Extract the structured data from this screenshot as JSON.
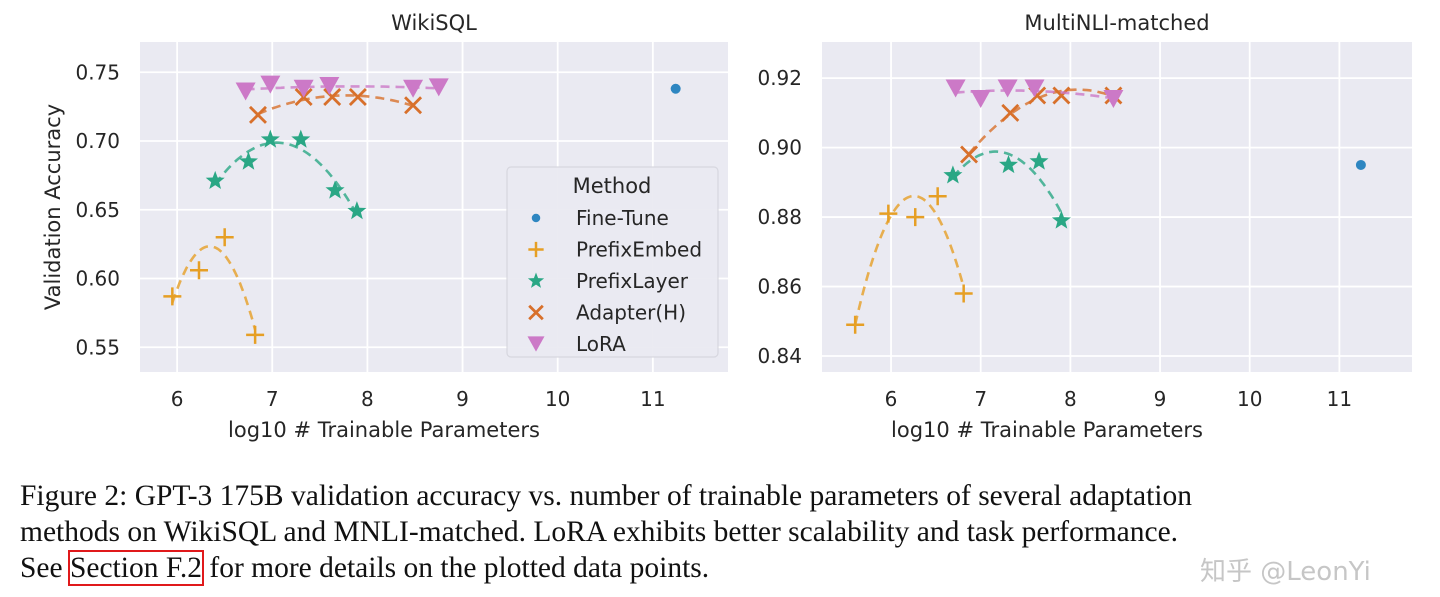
{
  "colors": {
    "background_plot": "#eaeaf2",
    "grid": "#ffffff",
    "Fine-Tune": "#2e86c1",
    "PrefixEmbed": "#e69f25",
    "PrefixLayer": "#2aa785",
    "Adapter(H)": "#d8702b",
    "LoRA": "#cc79c7"
  },
  "chart_data": [
    {
      "type": "scatter",
      "title": "WikiSQL",
      "xlabel": "log10 # Trainable Parameters",
      "ylabel": "Validation Accuracy",
      "xlim": [
        5.61,
        11.79
      ],
      "ylim": [
        0.532,
        0.772
      ],
      "xticks": [
        6,
        7,
        8,
        9,
        10,
        11
      ],
      "yticks": [
        0.55,
        0.6,
        0.65,
        0.7,
        0.75
      ],
      "ytick_labels": [
        "0.55",
        "0.60",
        "0.65",
        "0.70",
        "0.75"
      ],
      "grid": true,
      "legend": {
        "title": "Method",
        "placement": "center-right",
        "entries": [
          "Fine-Tune",
          "PrefixEmbed",
          "PrefixLayer",
          "Adapter(H)",
          "LoRA"
        ]
      },
      "series": [
        {
          "name": "Fine-Tune",
          "marker": "circle",
          "fit": false,
          "x": [
            11.24
          ],
          "y": [
            0.738
          ]
        },
        {
          "name": "PrefixEmbed",
          "marker": "plus",
          "fit": true,
          "x": [
            5.95,
            6.23,
            6.5,
            6.82
          ],
          "y": [
            0.587,
            0.606,
            0.63,
            0.559
          ]
        },
        {
          "name": "PrefixLayer",
          "marker": "star",
          "fit": true,
          "x": [
            6.4,
            6.75,
            6.98,
            7.3,
            7.66,
            7.89
          ],
          "y": [
            0.671,
            0.685,
            0.701,
            0.701,
            0.664,
            0.649
          ]
        },
        {
          "name": "Adapter(H)",
          "marker": "x",
          "fit": true,
          "x": [
            6.85,
            7.33,
            7.63,
            7.9,
            8.48
          ],
          "y": [
            0.719,
            0.732,
            0.732,
            0.732,
            0.726
          ]
        },
        {
          "name": "LoRA",
          "marker": "triangle-down",
          "fit": true,
          "x": [
            6.72,
            6.98,
            7.33,
            7.6,
            8.48,
            8.75
          ],
          "y": [
            0.736,
            0.741,
            0.738,
            0.74,
            0.738,
            0.739
          ]
        }
      ]
    },
    {
      "type": "scatter",
      "title": "MultiNLI-matched",
      "xlabel": "log10 # Trainable Parameters",
      "ylabel": "",
      "xlim": [
        5.23,
        11.81
      ],
      "ylim": [
        0.8354,
        0.9304
      ],
      "xticks": [
        6,
        7,
        8,
        9,
        10,
        11
      ],
      "yticks": [
        0.84,
        0.86,
        0.88,
        0.9,
        0.92
      ],
      "ytick_labels": [
        "0.84",
        "0.86",
        "0.88",
        "0.90",
        "0.92"
      ],
      "grid": true,
      "series": [
        {
          "name": "Fine-Tune",
          "marker": "circle",
          "fit": false,
          "x": [
            11.24
          ],
          "y": [
            0.895
          ]
        },
        {
          "name": "PrefixEmbed",
          "marker": "plus",
          "fit": true,
          "x": [
            5.6,
            5.97,
            6.27,
            6.52,
            6.81
          ],
          "y": [
            0.849,
            0.881,
            0.88,
            0.886,
            0.858
          ]
        },
        {
          "name": "PrefixLayer",
          "marker": "star",
          "fit": true,
          "x": [
            6.69,
            7.31,
            7.65,
            7.9
          ],
          "y": [
            0.892,
            0.895,
            0.896,
            0.879
          ]
        },
        {
          "name": "Adapter(H)",
          "marker": "x",
          "fit": true,
          "x": [
            6.87,
            7.33,
            7.63,
            7.9,
            8.48
          ],
          "y": [
            0.898,
            0.91,
            0.915,
            0.915,
            0.915
          ]
        },
        {
          "name": "LoRA",
          "marker": "triangle-down",
          "fit": true,
          "x": [
            6.72,
            7.0,
            7.3,
            7.6,
            8.48
          ],
          "y": [
            0.917,
            0.914,
            0.917,
            0.917,
            0.914
          ]
        }
      ]
    }
  ],
  "caption": {
    "line1": "Figure 2: GPT-3 175B validation accuracy vs. number of trainable parameters of several adaptation",
    "line2": "methods on WikiSQL and MNLI-matched. LoRA exhibits better scalability and task performance.",
    "line3_pre": "See ",
    "line3_link": "Section F.2",
    "line3_post": " for more details on the plotted data points."
  },
  "watermark": "知乎 @LeonYi"
}
